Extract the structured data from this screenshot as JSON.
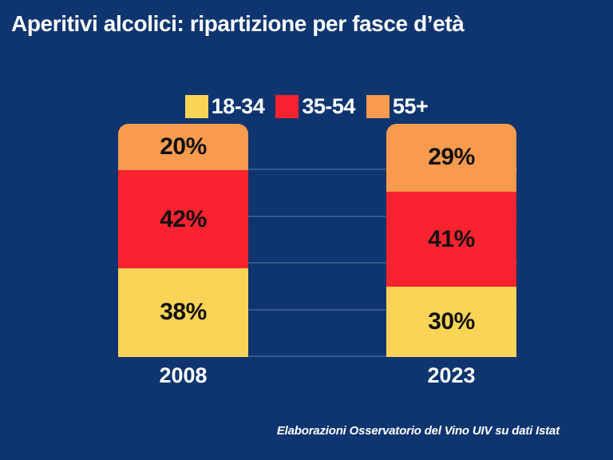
{
  "title": "Aperitivi alcolici: ripartizione per fasce d’età",
  "source": "Elaborazioni Osservatorio del Vino UIV su dati Istat",
  "colors": {
    "background": "#0e356f",
    "text": "#ffffff",
    "segment_label": "#111111",
    "gridline": "rgba(190,210,240,0.22)",
    "age_18_34": "#f9d456",
    "age_35_54": "#f8232e",
    "age_55_plus": "#f99b4e"
  },
  "chart_data": {
    "type": "bar",
    "stacked": true,
    "unit": "%",
    "title": "Aperitivi alcolici: ripartizione per fasce d’età",
    "categories": [
      "2008",
      "2023"
    ],
    "series": [
      {
        "name": "18-34",
        "color_key": "age_18_34",
        "values": [
          38,
          30
        ]
      },
      {
        "name": "35-54",
        "color_key": "age_35_54",
        "values": [
          42,
          41
        ]
      },
      {
        "name": "55+",
        "color_key": "age_55_plus",
        "values": [
          20,
          29
        ]
      }
    ],
    "ylim": [
      0,
      100
    ],
    "grid": "horizontal lines every 20%, axis labels hidden",
    "legend_position": "top-center",
    "value_labels": "percent shown inside each segment",
    "source": "Elaborazioni Osservatorio del Vino UIV su dati Istat"
  }
}
